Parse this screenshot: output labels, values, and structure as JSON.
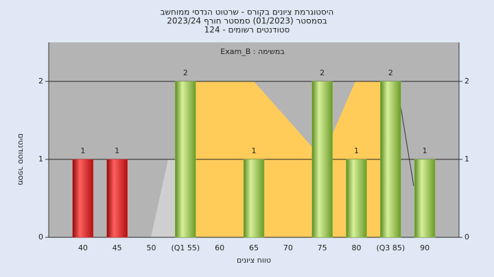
{
  "chart_data": {
    "type": "bar",
    "title": [
      "היסטוגרמת ציונים בקורס - שרטוט הנדסי ממוחשב",
      "בסמסטר  (01/2023)  סמסטר חורף 2023/24",
      "סטודנטים רשומים - 124"
    ],
    "annotation": "במשימה : Exam_B",
    "x_label": "טווח ציונים",
    "y_label": "מספר סטודנטים",
    "categories": [
      "40",
      "45",
      "50",
      "(Q1 55)",
      "60",
      "65",
      "70",
      "75",
      "80",
      "(Q3 85)",
      "90"
    ],
    "values": [
      1,
      1,
      0,
      2,
      0,
      1,
      0,
      2,
      1,
      2,
      1
    ],
    "colors": [
      "#e02a2a",
      "#e02a2a",
      "#8cc043",
      "#8cc043",
      "#8cc043",
      "#8cc043",
      "#8cc043",
      "#8cc043",
      "#8cc043",
      "#8cc043",
      "#8cc043"
    ],
    "ylim": [
      0,
      2.5
    ],
    "yticks": [
      0,
      1,
      2
    ],
    "grid": true
  }
}
